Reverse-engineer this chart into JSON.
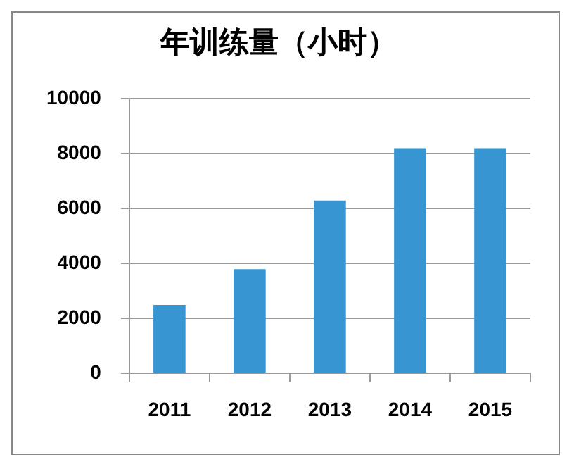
{
  "chart_data": {
    "type": "bar",
    "title": "年训练量（小时）",
    "categories": [
      "2011",
      "2012",
      "2013",
      "2014",
      "2015"
    ],
    "values": [
      2500,
      3800,
      6300,
      8200,
      8200
    ],
    "color": "#3795d2",
    "ylim": [
      0,
      10000
    ],
    "yticks": [
      0,
      2000,
      4000,
      6000,
      8000,
      10000
    ],
    "grid": "y",
    "legend": false
  }
}
